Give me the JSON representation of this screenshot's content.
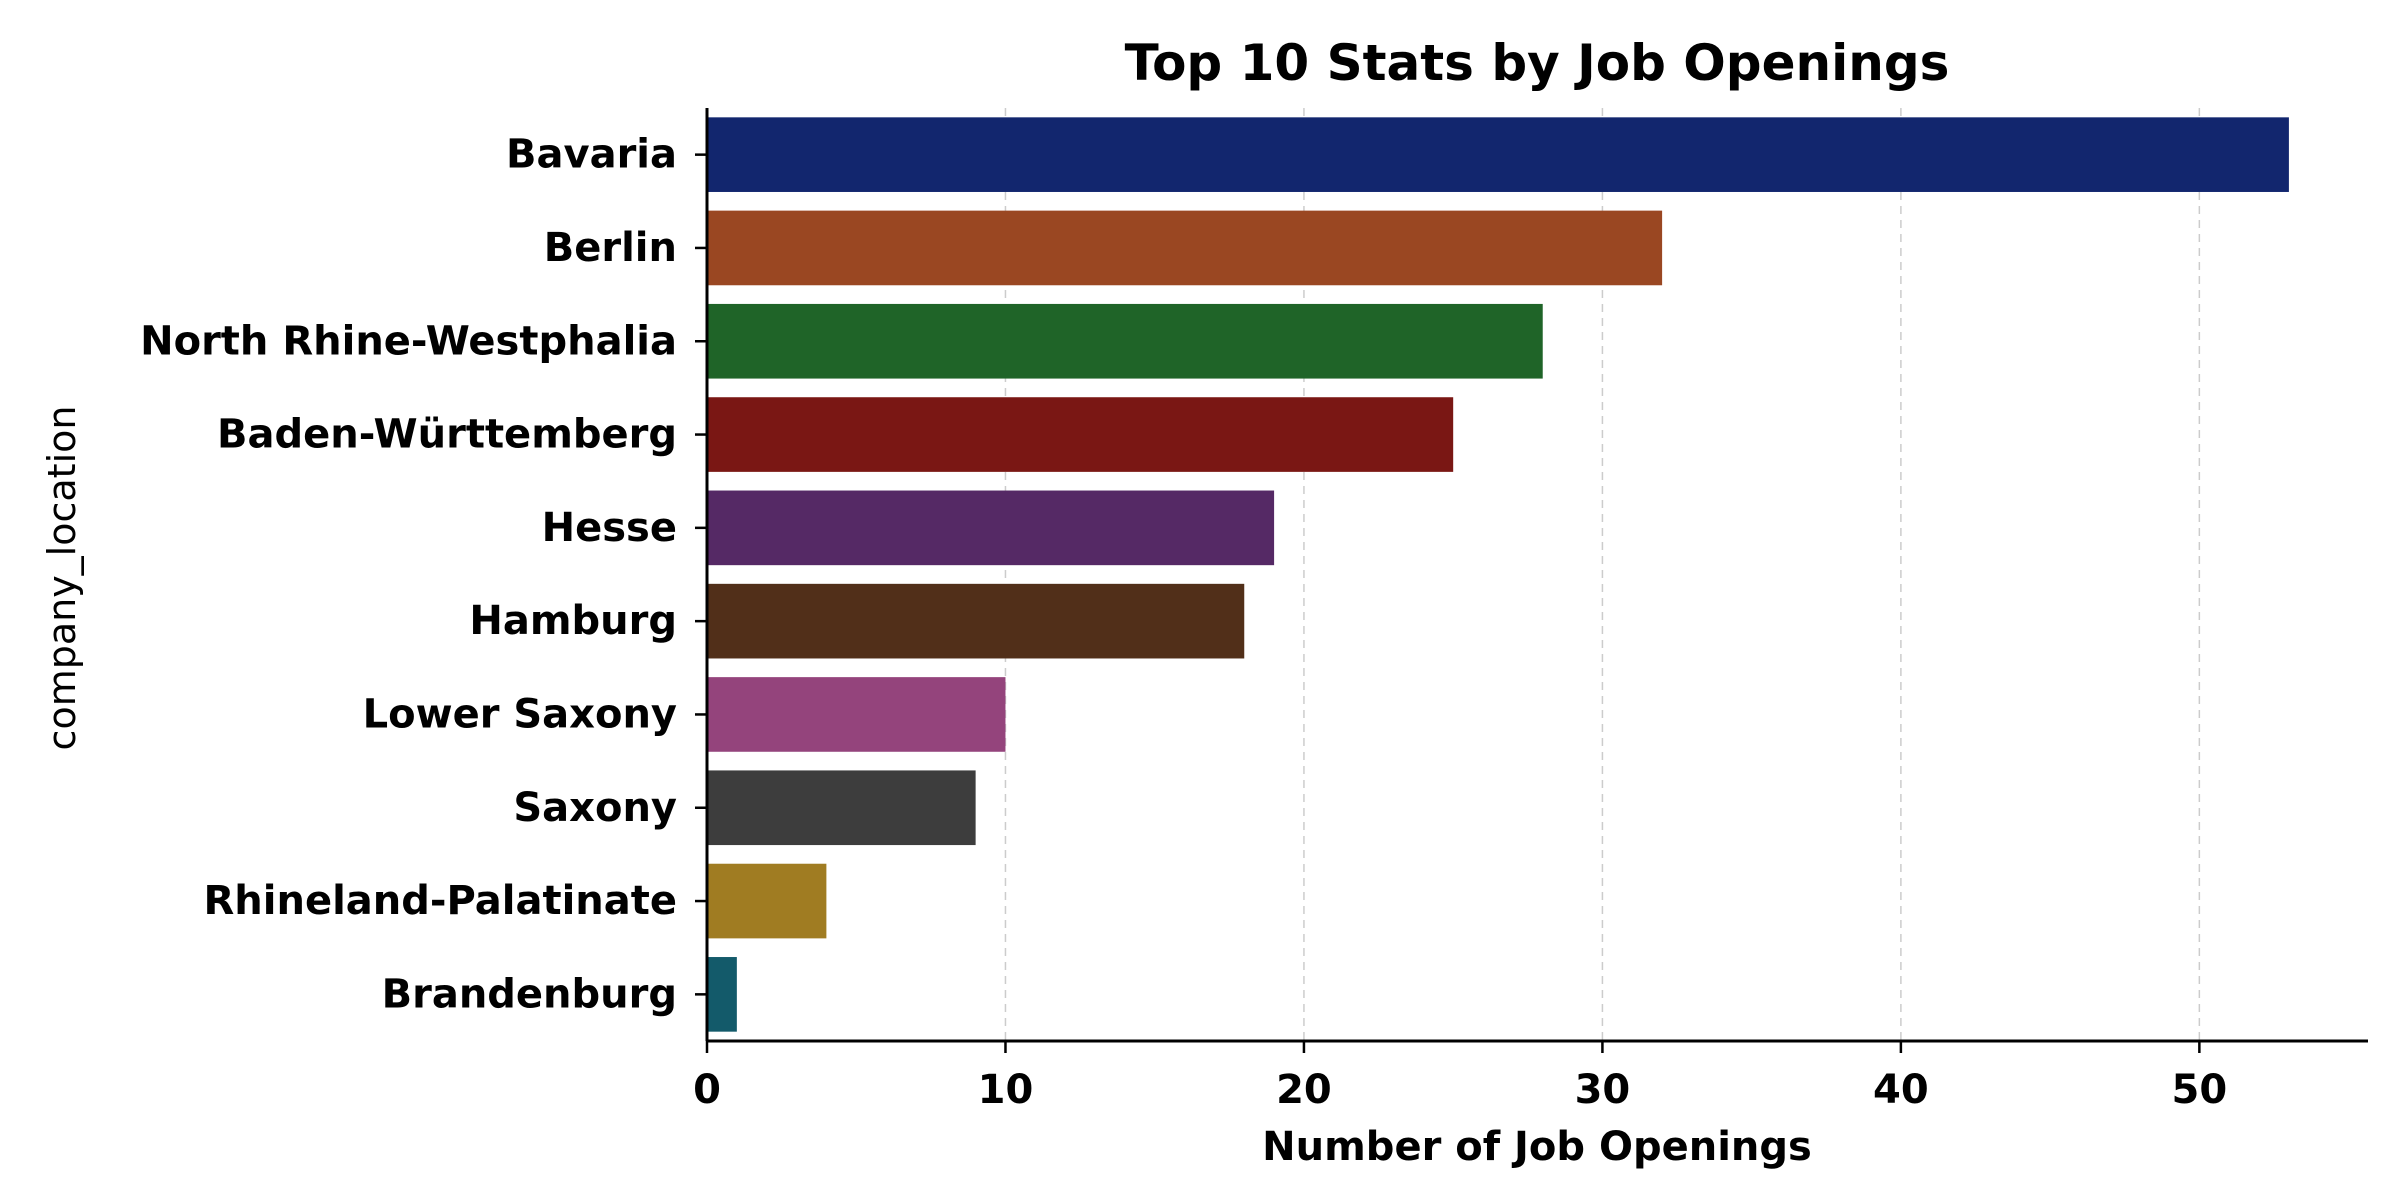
{
  "chart_data": {
    "type": "bar",
    "orientation": "horizontal",
    "title": "Top 10 Stats by Job Openings",
    "xlabel": "Number of Job Openings",
    "ylabel": "company_location",
    "categories": [
      "Bavaria",
      "Berlin",
      "North Rhine-Westphalia",
      "Baden-Württemberg",
      "Hesse",
      "Hamburg",
      "Lower Saxony",
      "Saxony",
      "Rhineland-Palatinate",
      "Brandenburg"
    ],
    "values": [
      53,
      32,
      28,
      25,
      19,
      18,
      10,
      9,
      4,
      1
    ],
    "colors": [
      "#12266e",
      "#9a4722",
      "#1f6428",
      "#7a1714",
      "#552965",
      "#512f19",
      "#94447c",
      "#3d3d3d",
      "#a07c22",
      "#135a6a"
    ],
    "xlim": [
      0,
      55.65
    ],
    "xticks": [
      "0",
      "10",
      "20",
      "30",
      "40",
      "50"
    ],
    "grid": "x-dashed",
    "legend": "none"
  }
}
